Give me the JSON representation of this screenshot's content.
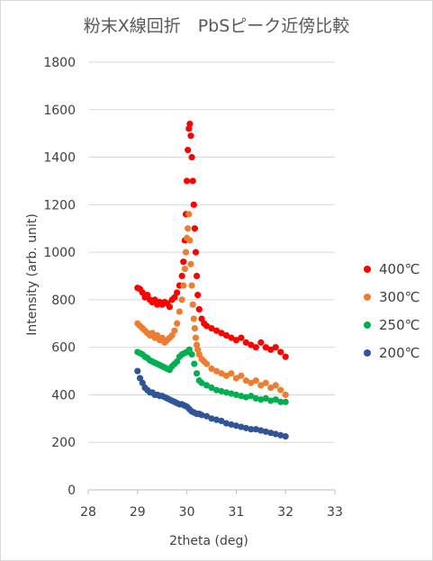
{
  "chart_data": {
    "type": "scatter",
    "title": "粉末X線回折　PbSピーク近傍比較",
    "xlabel": "2theta (deg)",
    "ylabel": "Intensity (arb. unit)",
    "xlim": [
      28,
      33
    ],
    "ylim": [
      0,
      1800
    ],
    "xticks": [
      "28",
      "29",
      "30",
      "31",
      "32",
      "33"
    ],
    "yticks": [
      "0",
      "200",
      "400",
      "600",
      "800",
      "1000",
      "1200",
      "1400",
      "1600",
      "1800"
    ],
    "grid": "horizontal",
    "legend_position": "right",
    "series": [
      {
        "name": "400℃",
        "color": "#ff0000",
        "x": [
          29.0,
          29.05,
          29.1,
          29.15,
          29.2,
          29.25,
          29.3,
          29.35,
          29.4,
          29.45,
          29.5,
          29.55,
          29.6,
          29.65,
          29.7,
          29.75,
          29.8,
          29.85,
          29.9,
          29.93,
          29.96,
          29.98,
          30.0,
          30.02,
          30.04,
          30.06,
          30.08,
          30.1,
          30.12,
          30.14,
          30.16,
          30.18,
          30.2,
          30.22,
          30.25,
          30.3,
          30.35,
          30.4,
          30.5,
          30.6,
          30.7,
          30.8,
          30.9,
          31.0,
          31.1,
          31.2,
          31.3,
          31.4,
          31.5,
          31.6,
          31.7,
          31.8,
          31.9,
          32.0
        ],
        "y": [
          850,
          845,
          830,
          810,
          820,
          800,
          790,
          800,
          780,
          790,
          780,
          790,
          785,
          770,
          800,
          810,
          830,
          860,
          900,
          960,
          1050,
          1160,
          1300,
          1430,
          1520,
          1540,
          1490,
          1400,
          1300,
          1200,
          1100,
          1000,
          900,
          820,
          760,
          720,
          700,
          690,
          680,
          670,
          660,
          650,
          640,
          630,
          640,
          620,
          610,
          600,
          620,
          600,
          590,
          600,
          580,
          560
        ]
      },
      {
        "name": "300℃",
        "color": "#ed7d31",
        "x": [
          29.0,
          29.05,
          29.1,
          29.15,
          29.2,
          29.25,
          29.3,
          29.35,
          29.4,
          29.45,
          29.5,
          29.55,
          29.6,
          29.65,
          29.7,
          29.75,
          29.8,
          29.85,
          29.9,
          29.93,
          29.96,
          29.98,
          30.0,
          30.02,
          30.04,
          30.06,
          30.08,
          30.1,
          30.12,
          30.14,
          30.16,
          30.18,
          30.2,
          30.22,
          30.25,
          30.3,
          30.35,
          30.4,
          30.5,
          30.6,
          30.7,
          30.8,
          30.9,
          31.0,
          31.1,
          31.2,
          31.3,
          31.4,
          31.5,
          31.6,
          31.7,
          31.8,
          31.9,
          32.0
        ],
        "y": [
          700,
          690,
          680,
          670,
          660,
          650,
          660,
          640,
          650,
          630,
          640,
          620,
          630,
          640,
          650,
          670,
          700,
          750,
          800,
          860,
          930,
          1000,
          1060,
          1100,
          1160,
          1050,
          950,
          860,
          780,
          720,
          680,
          640,
          610,
          590,
          570,
          550,
          540,
          530,
          510,
          500,
          490,
          480,
          490,
          470,
          480,
          460,
          450,
          460,
          440,
          450,
          430,
          440,
          420,
          400
        ]
      },
      {
        "name": "250℃",
        "color": "#00b050",
        "x": [
          29.0,
          29.05,
          29.1,
          29.15,
          29.2,
          29.25,
          29.3,
          29.35,
          29.4,
          29.45,
          29.5,
          29.55,
          29.6,
          29.65,
          29.7,
          29.75,
          29.8,
          29.85,
          29.9,
          29.95,
          30.0,
          30.05,
          30.1,
          30.15,
          30.2,
          30.25,
          30.3,
          30.4,
          30.5,
          30.6,
          30.7,
          30.8,
          30.9,
          31.0,
          31.1,
          31.2,
          31.3,
          31.4,
          31.5,
          31.6,
          31.7,
          31.8,
          31.9,
          32.0
        ],
        "y": [
          580,
          575,
          570,
          560,
          555,
          545,
          540,
          535,
          530,
          525,
          520,
          515,
          510,
          505,
          520,
          530,
          540,
          560,
          570,
          575,
          580,
          590,
          570,
          530,
          490,
          460,
          450,
          440,
          430,
          420,
          415,
          410,
          405,
          400,
          395,
          390,
          395,
          385,
          380,
          385,
          375,
          380,
          370,
          370
        ]
      },
      {
        "name": "200℃",
        "color": "#2f5597",
        "x": [
          29.0,
          29.05,
          29.1,
          29.15,
          29.2,
          29.25,
          29.3,
          29.35,
          29.4,
          29.45,
          29.5,
          29.55,
          29.6,
          29.65,
          29.7,
          29.75,
          29.8,
          29.85,
          29.9,
          29.95,
          30.0,
          30.05,
          30.1,
          30.15,
          30.2,
          30.25,
          30.3,
          30.4,
          30.5,
          30.6,
          30.7,
          30.8,
          30.9,
          31.0,
          31.1,
          31.2,
          31.3,
          31.4,
          31.5,
          31.6,
          31.7,
          31.8,
          31.9,
          32.0
        ],
        "y": [
          500,
          470,
          450,
          430,
          420,
          410,
          410,
          400,
          400,
          395,
          395,
          390,
          385,
          380,
          375,
          370,
          365,
          360,
          360,
          355,
          350,
          340,
          330,
          325,
          320,
          320,
          315,
          310,
          300,
          295,
          290,
          280,
          275,
          270,
          265,
          260,
          255,
          255,
          250,
          245,
          240,
          235,
          230,
          225
        ]
      }
    ]
  }
}
